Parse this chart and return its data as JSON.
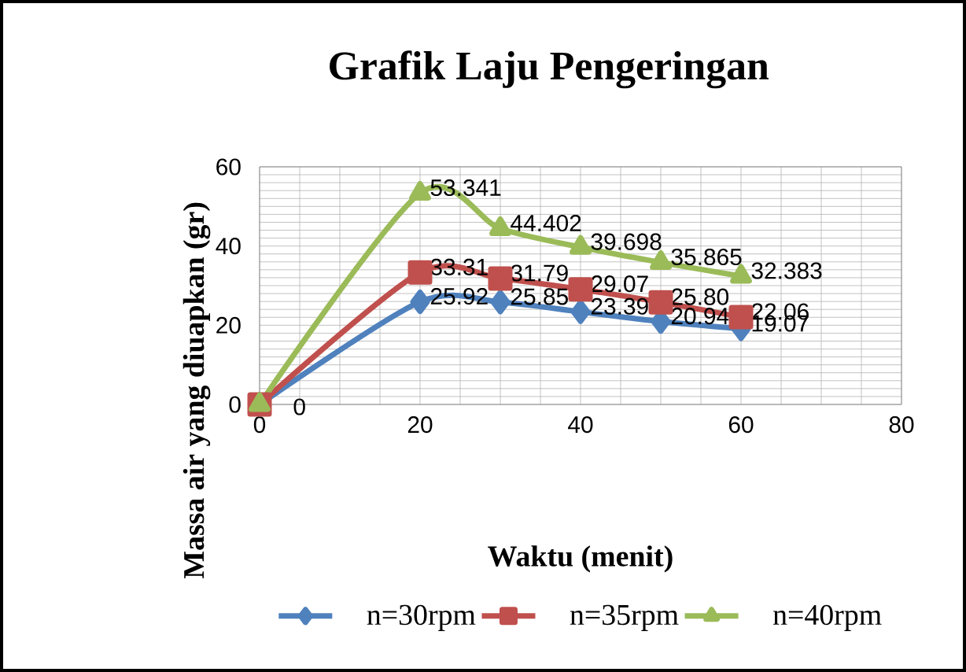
{
  "chart_data": {
    "type": "line",
    "title": "Grafik Laju Pengeringan",
    "xlabel": "Waktu (menit)",
    "ylabel": "Massa air yang diuapkan (gr)",
    "x": [
      0,
      20,
      30,
      40,
      50,
      60
    ],
    "series": [
      {
        "name": "n=30rpm",
        "color": "#4f81bd",
        "marker": "diamond",
        "values": [
          0,
          25.92,
          25.85,
          23.39,
          20.94,
          19.07
        ],
        "value_labels": [
          null,
          "25.92",
          "25.85",
          "23.39",
          "20.94",
          "19.07"
        ]
      },
      {
        "name": "n=35rpm",
        "color": "#c0504d",
        "marker": "square",
        "values": [
          0,
          33.31,
          31.79,
          29.07,
          25.8,
          22.06
        ],
        "value_labels": [
          null,
          "33.31",
          "31.79",
          "29.07",
          "25.80",
          "22.06"
        ]
      },
      {
        "name": "n=40rpm",
        "color": "#9bbb59",
        "marker": "triangle",
        "values": [
          0,
          53.341,
          44.402,
          39.698,
          35.865,
          32.383
        ],
        "value_labels": [
          "0",
          "53.341",
          "44.402",
          "39.698",
          "35.865",
          "32.383"
        ]
      }
    ],
    "xlim": [
      0,
      80
    ],
    "xticks": [
      0,
      20,
      40,
      60,
      80
    ],
    "ylim": [
      0,
      60
    ],
    "yticks": [
      0,
      20,
      40,
      60
    ],
    "grid": true,
    "legend": "bottom"
  }
}
